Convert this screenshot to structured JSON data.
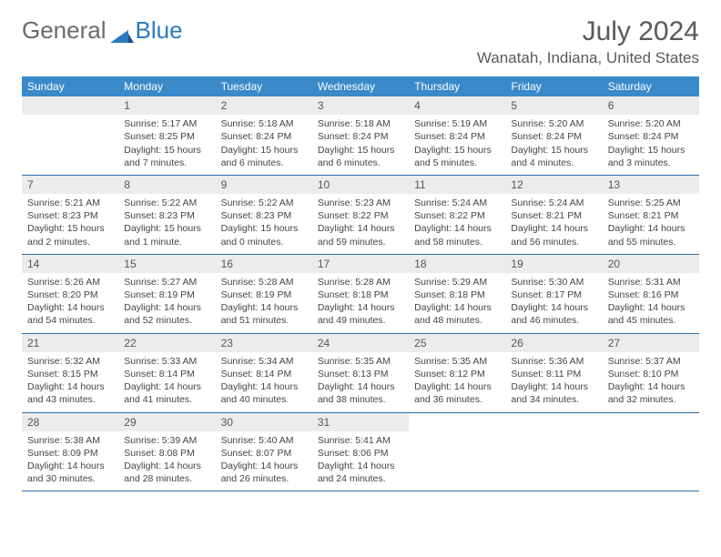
{
  "brand": {
    "part1": "General",
    "part2": "Blue"
  },
  "title": "July 2024",
  "location": "Wanatah, Indiana, United States",
  "colors": {
    "header_bar": "#3a8ac9",
    "week_divider": "#2b6fa8",
    "daynum_bg": "#ececec",
    "brand_blue": "#2b7bbf",
    "text": "#5a5a5a"
  },
  "weekdays": [
    "Sunday",
    "Monday",
    "Tuesday",
    "Wednesday",
    "Thursday",
    "Friday",
    "Saturday"
  ],
  "start_offset": 1,
  "days": [
    {
      "n": 1,
      "sunrise": "5:17 AM",
      "sunset": "8:25 PM",
      "daylight": "15 hours and 7 minutes."
    },
    {
      "n": 2,
      "sunrise": "5:18 AM",
      "sunset": "8:24 PM",
      "daylight": "15 hours and 6 minutes."
    },
    {
      "n": 3,
      "sunrise": "5:18 AM",
      "sunset": "8:24 PM",
      "daylight": "15 hours and 6 minutes."
    },
    {
      "n": 4,
      "sunrise": "5:19 AM",
      "sunset": "8:24 PM",
      "daylight": "15 hours and 5 minutes."
    },
    {
      "n": 5,
      "sunrise": "5:20 AM",
      "sunset": "8:24 PM",
      "daylight": "15 hours and 4 minutes."
    },
    {
      "n": 6,
      "sunrise": "5:20 AM",
      "sunset": "8:24 PM",
      "daylight": "15 hours and 3 minutes."
    },
    {
      "n": 7,
      "sunrise": "5:21 AM",
      "sunset": "8:23 PM",
      "daylight": "15 hours and 2 minutes."
    },
    {
      "n": 8,
      "sunrise": "5:22 AM",
      "sunset": "8:23 PM",
      "daylight": "15 hours and 1 minute."
    },
    {
      "n": 9,
      "sunrise": "5:22 AM",
      "sunset": "8:23 PM",
      "daylight": "15 hours and 0 minutes."
    },
    {
      "n": 10,
      "sunrise": "5:23 AM",
      "sunset": "8:22 PM",
      "daylight": "14 hours and 59 minutes."
    },
    {
      "n": 11,
      "sunrise": "5:24 AM",
      "sunset": "8:22 PM",
      "daylight": "14 hours and 58 minutes."
    },
    {
      "n": 12,
      "sunrise": "5:24 AM",
      "sunset": "8:21 PM",
      "daylight": "14 hours and 56 minutes."
    },
    {
      "n": 13,
      "sunrise": "5:25 AM",
      "sunset": "8:21 PM",
      "daylight": "14 hours and 55 minutes."
    },
    {
      "n": 14,
      "sunrise": "5:26 AM",
      "sunset": "8:20 PM",
      "daylight": "14 hours and 54 minutes."
    },
    {
      "n": 15,
      "sunrise": "5:27 AM",
      "sunset": "8:19 PM",
      "daylight": "14 hours and 52 minutes."
    },
    {
      "n": 16,
      "sunrise": "5:28 AM",
      "sunset": "8:19 PM",
      "daylight": "14 hours and 51 minutes."
    },
    {
      "n": 17,
      "sunrise": "5:28 AM",
      "sunset": "8:18 PM",
      "daylight": "14 hours and 49 minutes."
    },
    {
      "n": 18,
      "sunrise": "5:29 AM",
      "sunset": "8:18 PM",
      "daylight": "14 hours and 48 minutes."
    },
    {
      "n": 19,
      "sunrise": "5:30 AM",
      "sunset": "8:17 PM",
      "daylight": "14 hours and 46 minutes."
    },
    {
      "n": 20,
      "sunrise": "5:31 AM",
      "sunset": "8:16 PM",
      "daylight": "14 hours and 45 minutes."
    },
    {
      "n": 21,
      "sunrise": "5:32 AM",
      "sunset": "8:15 PM",
      "daylight": "14 hours and 43 minutes."
    },
    {
      "n": 22,
      "sunrise": "5:33 AM",
      "sunset": "8:14 PM",
      "daylight": "14 hours and 41 minutes."
    },
    {
      "n": 23,
      "sunrise": "5:34 AM",
      "sunset": "8:14 PM",
      "daylight": "14 hours and 40 minutes."
    },
    {
      "n": 24,
      "sunrise": "5:35 AM",
      "sunset": "8:13 PM",
      "daylight": "14 hours and 38 minutes."
    },
    {
      "n": 25,
      "sunrise": "5:35 AM",
      "sunset": "8:12 PM",
      "daylight": "14 hours and 36 minutes."
    },
    {
      "n": 26,
      "sunrise": "5:36 AM",
      "sunset": "8:11 PM",
      "daylight": "14 hours and 34 minutes."
    },
    {
      "n": 27,
      "sunrise": "5:37 AM",
      "sunset": "8:10 PM",
      "daylight": "14 hours and 32 minutes."
    },
    {
      "n": 28,
      "sunrise": "5:38 AM",
      "sunset": "8:09 PM",
      "daylight": "14 hours and 30 minutes."
    },
    {
      "n": 29,
      "sunrise": "5:39 AM",
      "sunset": "8:08 PM",
      "daylight": "14 hours and 28 minutes."
    },
    {
      "n": 30,
      "sunrise": "5:40 AM",
      "sunset": "8:07 PM",
      "daylight": "14 hours and 26 minutes."
    },
    {
      "n": 31,
      "sunrise": "5:41 AM",
      "sunset": "8:06 PM",
      "daylight": "14 hours and 24 minutes."
    }
  ],
  "labels": {
    "sunrise": "Sunrise: ",
    "sunset": "Sunset: ",
    "daylight": "Daylight: "
  }
}
